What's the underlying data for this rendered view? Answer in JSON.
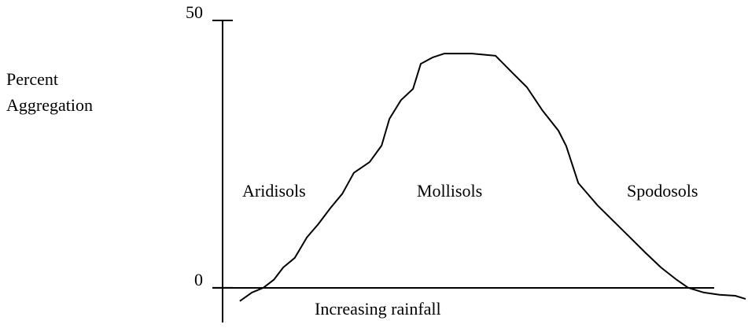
{
  "chart_data": {
    "type": "line",
    "ylabel": [
      "Percent",
      "Aggregation"
    ],
    "xlabel": "Increasing rainfall",
    "annotations": [
      "Aridisols",
      "Mollisols",
      "Spodosols"
    ],
    "x": [
      3.3,
      5.6,
      7.8,
      9.8,
      11.6,
      13.8,
      16.1,
      18.3,
      20.6,
      22.9,
      25.1,
      28.1,
      30.4,
      31.9,
      34.1,
      36.4,
      37.9,
      40.2,
      42.4,
      47.7,
      52.2,
      55.2,
      58.2,
      61.2,
      64.2,
      65.7,
      68.0,
      71.7,
      74.7,
      77.7,
      80.8,
      83.8,
      86.8,
      89.0,
      92.0,
      95.0,
      98.0,
      100
    ],
    "series": [
      {
        "color": "#000000",
        "values": [
          -2.5,
          -0.9,
          0,
          1.5,
          3.8,
          5.6,
          9.4,
          11.9,
          14.9,
          17.6,
          21.5,
          23.5,
          26.6,
          31.6,
          35.1,
          37.2,
          41.9,
          43.1,
          43.8,
          43.8,
          43.4,
          40.4,
          37.5,
          33.1,
          29.4,
          26.5,
          19.6,
          15.4,
          12.5,
          9.6,
          6.6,
          3.8,
          1.5,
          0,
          -0.9,
          -1.3,
          -1.5,
          -2.1
        ]
      }
    ],
    "xlim": [
      0,
      100
    ],
    "ylim": [
      -6.5,
      50
    ],
    "yticks": [
      0,
      50
    ]
  }
}
